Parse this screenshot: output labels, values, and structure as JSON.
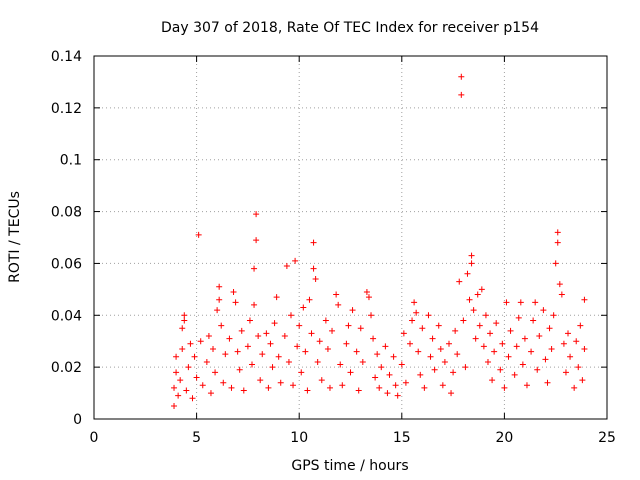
{
  "chart_data": {
    "type": "scatter",
    "title": "Day 307 of 2018, Rate Of TEC Index for receiver p154",
    "xlabel": "GPS time / hours",
    "ylabel": "ROTI / TECUs",
    "xlim": [
      0,
      25
    ],
    "ylim": [
      0,
      0.14
    ],
    "xticks": [
      0,
      5,
      10,
      15,
      20,
      25
    ],
    "yticks": [
      0,
      0.02,
      0.04,
      0.06,
      0.08,
      0.1,
      0.12,
      0.14
    ],
    "xtick_labels": [
      "0",
      "5",
      "10",
      "15",
      "20",
      "25"
    ],
    "ytick_labels": [
      "0",
      "0.02",
      "0.04",
      "0.06",
      "0.08",
      "0.1",
      "0.12",
      "0.14"
    ],
    "grid": true,
    "marker": "plus",
    "color": "#ff0000",
    "series": [
      {
        "points": [
          [
            3.9,
            0.005
          ],
          [
            3.9,
            0.012
          ],
          [
            4.0,
            0.018
          ],
          [
            4.0,
            0.024
          ],
          [
            4.1,
            0.009
          ],
          [
            4.2,
            0.015
          ],
          [
            4.3,
            0.027
          ],
          [
            4.3,
            0.035
          ],
          [
            4.4,
            0.04
          ],
          [
            4.4,
            0.038
          ],
          [
            4.5,
            0.011
          ],
          [
            4.6,
            0.02
          ],
          [
            4.7,
            0.029
          ],
          [
            4.8,
            0.008
          ],
          [
            4.9,
            0.024
          ],
          [
            5.0,
            0.016
          ],
          [
            5.1,
            0.071
          ],
          [
            5.2,
            0.03
          ],
          [
            5.3,
            0.013
          ],
          [
            5.5,
            0.022
          ],
          [
            5.6,
            0.032
          ],
          [
            5.7,
            0.01
          ],
          [
            5.8,
            0.027
          ],
          [
            5.9,
            0.018
          ],
          [
            6.0,
            0.042
          ],
          [
            6.1,
            0.051
          ],
          [
            6.1,
            0.046
          ],
          [
            6.2,
            0.036
          ],
          [
            6.3,
            0.014
          ],
          [
            6.4,
            0.025
          ],
          [
            6.6,
            0.031
          ],
          [
            6.7,
            0.012
          ],
          [
            6.8,
            0.049
          ],
          [
            6.9,
            0.045
          ],
          [
            7.0,
            0.026
          ],
          [
            7.1,
            0.019
          ],
          [
            7.2,
            0.034
          ],
          [
            7.3,
            0.011
          ],
          [
            7.5,
            0.028
          ],
          [
            7.6,
            0.038
          ],
          [
            7.7,
            0.021
          ],
          [
            7.8,
            0.044
          ],
          [
            7.8,
            0.058
          ],
          [
            7.9,
            0.079
          ],
          [
            7.9,
            0.069
          ],
          [
            8.0,
            0.032
          ],
          [
            8.1,
            0.015
          ],
          [
            8.2,
            0.025
          ],
          [
            8.4,
            0.033
          ],
          [
            8.5,
            0.012
          ],
          [
            8.6,
            0.029
          ],
          [
            8.7,
            0.02
          ],
          [
            8.8,
            0.037
          ],
          [
            8.9,
            0.047
          ],
          [
            9.0,
            0.024
          ],
          [
            9.1,
            0.014
          ],
          [
            9.3,
            0.032
          ],
          [
            9.4,
            0.059
          ],
          [
            9.5,
            0.022
          ],
          [
            9.6,
            0.04
          ],
          [
            9.7,
            0.013
          ],
          [
            9.8,
            0.061
          ],
          [
            9.9,
            0.028
          ],
          [
            10.0,
            0.036
          ],
          [
            10.1,
            0.018
          ],
          [
            10.2,
            0.043
          ],
          [
            10.3,
            0.026
          ],
          [
            10.4,
            0.011
          ],
          [
            10.5,
            0.046
          ],
          [
            10.6,
            0.033
          ],
          [
            10.7,
            0.068
          ],
          [
            10.7,
            0.058
          ],
          [
            10.8,
            0.054
          ],
          [
            10.9,
            0.022
          ],
          [
            11.0,
            0.03
          ],
          [
            11.1,
            0.015
          ],
          [
            11.3,
            0.038
          ],
          [
            11.4,
            0.027
          ],
          [
            11.5,
            0.012
          ],
          [
            11.6,
            0.034
          ],
          [
            11.8,
            0.048
          ],
          [
            11.9,
            0.044
          ],
          [
            12.0,
            0.021
          ],
          [
            12.1,
            0.013
          ],
          [
            12.3,
            0.029
          ],
          [
            12.4,
            0.036
          ],
          [
            12.5,
            0.018
          ],
          [
            12.6,
            0.042
          ],
          [
            12.8,
            0.026
          ],
          [
            12.9,
            0.011
          ],
          [
            13.0,
            0.035
          ],
          [
            13.1,
            0.022
          ],
          [
            13.3,
            0.049
          ],
          [
            13.4,
            0.047
          ],
          [
            13.5,
            0.04
          ],
          [
            13.6,
            0.031
          ],
          [
            13.7,
            0.016
          ],
          [
            13.8,
            0.025
          ],
          [
            13.9,
            0.012
          ],
          [
            14.0,
            0.02
          ],
          [
            14.2,
            0.028
          ],
          [
            14.3,
            0.01
          ],
          [
            14.4,
            0.017
          ],
          [
            14.6,
            0.024
          ],
          [
            14.7,
            0.013
          ],
          [
            14.8,
            0.009
          ],
          [
            15.0,
            0.021
          ],
          [
            15.1,
            0.033
          ],
          [
            15.2,
            0.014
          ],
          [
            15.4,
            0.029
          ],
          [
            15.5,
            0.038
          ],
          [
            15.6,
            0.045
          ],
          [
            15.7,
            0.041
          ],
          [
            15.8,
            0.026
          ],
          [
            15.9,
            0.017
          ],
          [
            16.0,
            0.035
          ],
          [
            16.1,
            0.012
          ],
          [
            16.3,
            0.04
          ],
          [
            16.4,
            0.024
          ],
          [
            16.5,
            0.031
          ],
          [
            16.6,
            0.019
          ],
          [
            16.8,
            0.036
          ],
          [
            16.9,
            0.027
          ],
          [
            17.0,
            0.013
          ],
          [
            17.1,
            0.022
          ],
          [
            17.3,
            0.029
          ],
          [
            17.4,
            0.01
          ],
          [
            17.5,
            0.018
          ],
          [
            17.6,
            0.034
          ],
          [
            17.7,
            0.025
          ],
          [
            17.8,
            0.053
          ],
          [
            17.9,
            0.132
          ],
          [
            17.9,
            0.125
          ],
          [
            18.0,
            0.038
          ],
          [
            18.1,
            0.02
          ],
          [
            18.2,
            0.056
          ],
          [
            18.3,
            0.046
          ],
          [
            18.4,
            0.063
          ],
          [
            18.4,
            0.06
          ],
          [
            18.5,
            0.042
          ],
          [
            18.6,
            0.031
          ],
          [
            18.7,
            0.048
          ],
          [
            18.8,
            0.036
          ],
          [
            18.9,
            0.05
          ],
          [
            19.0,
            0.028
          ],
          [
            19.1,
            0.04
          ],
          [
            19.2,
            0.022
          ],
          [
            19.3,
            0.033
          ],
          [
            19.4,
            0.015
          ],
          [
            19.5,
            0.026
          ],
          [
            19.6,
            0.037
          ],
          [
            19.8,
            0.019
          ],
          [
            19.9,
            0.029
          ],
          [
            20.0,
            0.012
          ],
          [
            20.1,
            0.045
          ],
          [
            20.2,
            0.024
          ],
          [
            20.3,
            0.034
          ],
          [
            20.5,
            0.017
          ],
          [
            20.6,
            0.028
          ],
          [
            20.7,
            0.039
          ],
          [
            20.8,
            0.045
          ],
          [
            20.9,
            0.021
          ],
          [
            21.0,
            0.031
          ],
          [
            21.1,
            0.013
          ],
          [
            21.3,
            0.026
          ],
          [
            21.4,
            0.038
          ],
          [
            21.5,
            0.045
          ],
          [
            21.6,
            0.019
          ],
          [
            21.7,
            0.032
          ],
          [
            21.9,
            0.042
          ],
          [
            22.0,
            0.023
          ],
          [
            22.1,
            0.014
          ],
          [
            22.2,
            0.035
          ],
          [
            22.3,
            0.027
          ],
          [
            22.4,
            0.04
          ],
          [
            22.5,
            0.06
          ],
          [
            22.6,
            0.072
          ],
          [
            22.6,
            0.068
          ],
          [
            22.7,
            0.052
          ],
          [
            22.8,
            0.048
          ],
          [
            22.9,
            0.029
          ],
          [
            23.0,
            0.018
          ],
          [
            23.1,
            0.033
          ],
          [
            23.2,
            0.024
          ],
          [
            23.4,
            0.012
          ],
          [
            23.5,
            0.03
          ],
          [
            23.6,
            0.02
          ],
          [
            23.7,
            0.036
          ],
          [
            23.8,
            0.015
          ],
          [
            23.9,
            0.046
          ],
          [
            23.9,
            0.027
          ]
        ]
      }
    ]
  }
}
